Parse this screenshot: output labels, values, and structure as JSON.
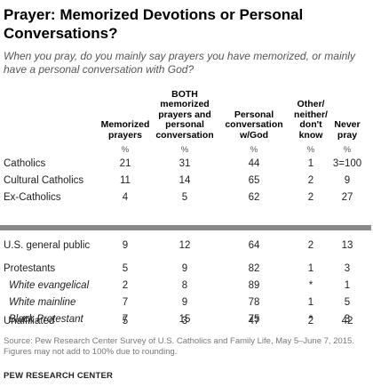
{
  "chart_data": {
    "type": "table",
    "title": "Prayer: Memorized Devotions or Personal Conversations?",
    "subtitle": "When you pray, do you mainly say prayers you have memorized, or mainly have a personal conversation with God?",
    "columns": [
      "Memorized prayers",
      "BOTH memorized prayers and personal conversation",
      "Personal conversation w/God",
      "Other/ neither/ don't know",
      "Never pray"
    ],
    "unit_row": [
      "%",
      "%",
      "%",
      "%",
      "%"
    ],
    "rows": [
      {
        "label": "Catholics",
        "indent": false,
        "values": [
          "21",
          "31",
          "44",
          "1",
          "3=100"
        ]
      },
      {
        "label": "Cultural Catholics",
        "indent": false,
        "values": [
          "11",
          "14",
          "65",
          "2",
          "9"
        ]
      },
      {
        "label": "Ex-Catholics",
        "indent": false,
        "values": [
          "4",
          "5",
          "62",
          "2",
          "27"
        ]
      },
      {
        "label": "U.S. general public",
        "indent": false,
        "values": [
          "9",
          "12",
          "64",
          "2",
          "13"
        ]
      },
      {
        "label": "Protestants",
        "indent": false,
        "values": [
          "5",
          "9",
          "82",
          "1",
          "3"
        ]
      },
      {
        "label": "White evangelical",
        "indent": true,
        "values": [
          "2",
          "8",
          "89",
          "*",
          "1"
        ]
      },
      {
        "label": "White mainline",
        "indent": true,
        "values": [
          "7",
          "9",
          "78",
          "1",
          "5"
        ]
      },
      {
        "label": "Black Protestant",
        "indent": true,
        "values": [
          "7",
          "15",
          "75",
          "*",
          "3"
        ]
      },
      {
        "label": "Unaffiliated",
        "indent": false,
        "values": [
          "5",
          "3",
          "47",
          "2",
          "42"
        ]
      }
    ],
    "source": "Source: Pew Research Center Survey of U.S. Catholics and Family Life, May 5–June 7, 2015.",
    "note": "Figures may not add to 100% due to rounding.",
    "brand": "PEW RESEARCH CENTER",
    "colors": {
      "separator": "#8a8a8a",
      "note_text": "#777777",
      "subtitle_text": "#555555"
    }
  }
}
